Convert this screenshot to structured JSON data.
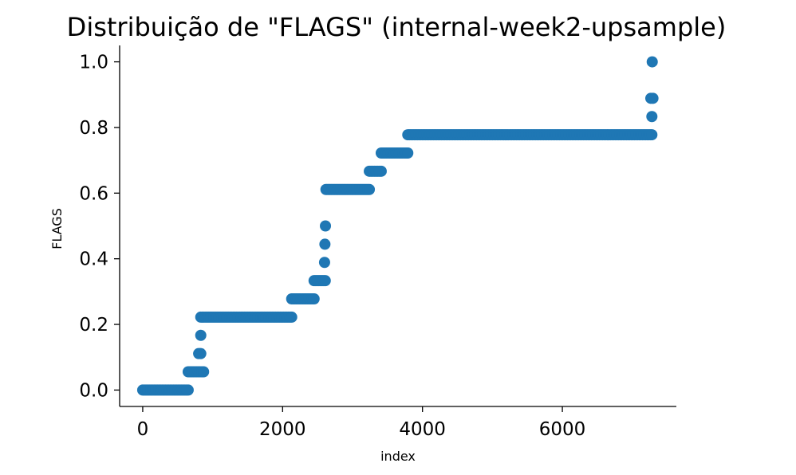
{
  "chart_data": {
    "type": "scatter",
    "title": "Distribuição de \"FLAGS\" (internal-week2-upsample)",
    "xlabel": "index",
    "ylabel": "FLAGS",
    "xlim": [
      -330,
      7630
    ],
    "ylim": [
      -0.05,
      1.05
    ],
    "xticks": [
      0,
      2000,
      4000,
      6000
    ],
    "xtick_labels": [
      "0",
      "2000",
      "4000",
      "6000"
    ],
    "yticks": [
      0.0,
      0.2,
      0.4,
      0.6,
      0.8,
      1.0
    ],
    "ytick_labels": [
      "0.0",
      "0.2",
      "0.4",
      "0.6",
      "0.8",
      "1.0"
    ],
    "grid": false,
    "color": "#1f77b4",
    "segments": [
      {
        "x_start": 0,
        "x_end": 650,
        "y": 0.0
      },
      {
        "x_start": 650,
        "x_end": 870,
        "y": 0.0556
      },
      {
        "x_start": 800,
        "x_end": 830,
        "y": 0.1111
      },
      {
        "x_start": 820,
        "x_end": 840,
        "y": 0.1667
      },
      {
        "x_start": 830,
        "x_end": 2130,
        "y": 0.2222
      },
      {
        "x_start": 2130,
        "x_end": 2450,
        "y": 0.2778
      },
      {
        "x_start": 2450,
        "x_end": 2610,
        "y": 0.3333
      },
      {
        "x_start": 2590,
        "x_end": 2610,
        "y": 0.3889
      },
      {
        "x_start": 2595,
        "x_end": 2615,
        "y": 0.4444
      },
      {
        "x_start": 2605,
        "x_end": 2620,
        "y": 0.5
      },
      {
        "x_start": 2620,
        "x_end": 3240,
        "y": 0.6111
      },
      {
        "x_start": 3240,
        "x_end": 3410,
        "y": 0.6667
      },
      {
        "x_start": 3410,
        "x_end": 3790,
        "y": 0.7222
      },
      {
        "x_start": 3790,
        "x_end": 7280,
        "y": 0.7778
      },
      {
        "x_start": 7270,
        "x_end": 7290,
        "y": 0.8333
      },
      {
        "x_start": 7265,
        "x_end": 7295,
        "y": 0.8889
      },
      {
        "x_start": 7280,
        "x_end": 7290,
        "y": 1.0
      }
    ]
  }
}
